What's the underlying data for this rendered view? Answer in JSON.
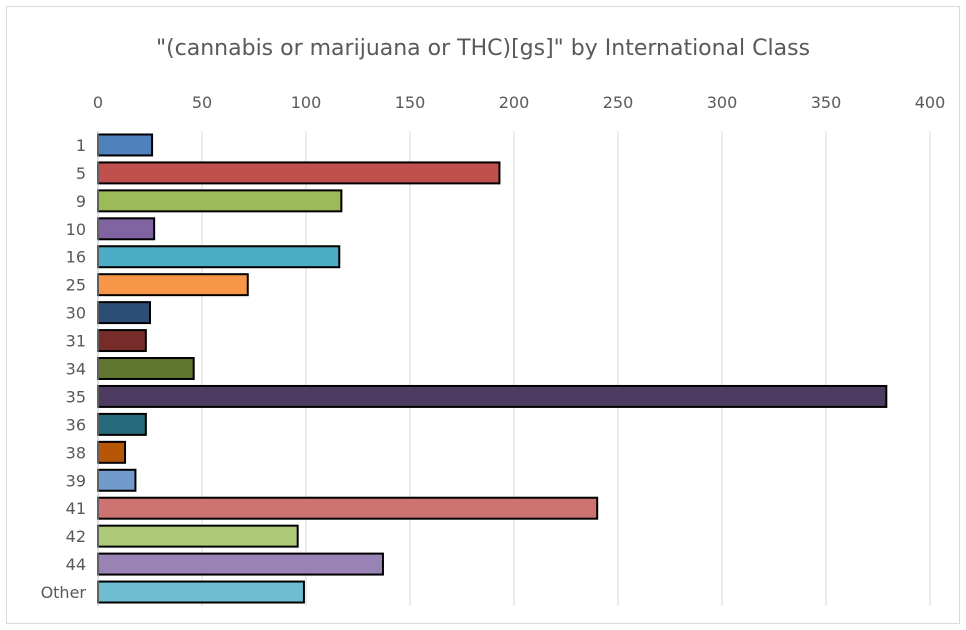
{
  "chart_data": {
    "type": "bar",
    "orientation": "horizontal",
    "title": "\"(cannabis or marijuana or THC)[gs]\" by International Class",
    "xlabel": "",
    "ylabel": "",
    "xlim": [
      0,
      400
    ],
    "x_ticks": [
      0,
      50,
      100,
      150,
      200,
      250,
      300,
      350,
      400
    ],
    "x_axis_position": "top",
    "grid": true,
    "legend": "none",
    "categories": [
      "1",
      "5",
      "9",
      "10",
      "16",
      "25",
      "30",
      "31",
      "34",
      "35",
      "36",
      "38",
      "39",
      "41",
      "42",
      "44",
      "Other"
    ],
    "values": [
      26,
      193,
      117,
      27,
      116,
      72,
      25,
      23,
      46,
      379,
      23,
      13,
      18,
      240,
      96,
      137,
      99
    ],
    "colors": [
      "#4f81bd",
      "#c0504d",
      "#9bbb59",
      "#8064a2",
      "#4bacc6",
      "#f79646",
      "#2c4d75",
      "#772c2a",
      "#5f7530",
      "#4d3b62",
      "#276a7c",
      "#b65708",
      "#729aca",
      "#cd7371",
      "#afc97a",
      "#9983b5",
      "#6fbdd1"
    ]
  }
}
